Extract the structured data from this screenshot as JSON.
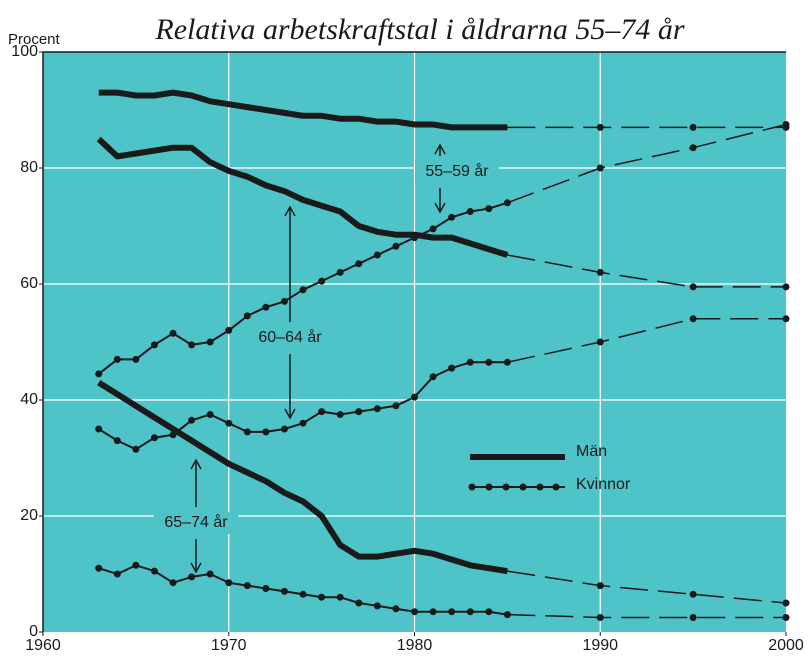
{
  "chart_data": {
    "type": "line",
    "title": "Relativa arbetskraftstal i åldrarna 55–74 år",
    "y_label": "Procent",
    "x": [
      1963,
      1964,
      1965,
      1966,
      1967,
      1968,
      1969,
      1970,
      1971,
      1972,
      1973,
      1974,
      1975,
      1976,
      1977,
      1978,
      1979,
      1980,
      1981,
      1982,
      1983,
      1984,
      1985,
      1990,
      1995,
      2000
    ],
    "dashed_from_x": 1985,
    "series": [
      {
        "name": "Män",
        "color": "#1a1a1a",
        "lines": [
          {
            "values": [
              93,
              93,
              92.5,
              92.5,
              93,
              92.5,
              91.5,
              91,
              90.5,
              90,
              89.5,
              89,
              89,
              88.5,
              88.5,
              88,
              88,
              87.5,
              87.5,
              87,
              87,
              87,
              87,
              87,
              87,
              87
            ]
          },
          {
            "values": [
              85,
              82,
              82.5,
              83,
              83.5,
              83.5,
              81,
              79.5,
              78.5,
              77,
              76,
              74.5,
              73.5,
              72.5,
              70,
              69,
              68.5,
              68.5,
              68,
              68,
              67,
              66,
              65,
              62,
              59.5,
              59.5
            ]
          },
          {
            "values": [
              43,
              41,
              39,
              37,
              35,
              33,
              31,
              29,
              27.5,
              26,
              24,
              22.5,
              20,
              15,
              13,
              13,
              13.5,
              14,
              13.5,
              12.5,
              11.5,
              11,
              10.5,
              8,
              6.5,
              5
            ]
          }
        ]
      },
      {
        "name": "Kvinnor",
        "color": "#1a1a1a",
        "lines": [
          {
            "values": [
              44.5,
              47,
              47,
              49.5,
              51.5,
              49.5,
              50,
              52,
              54.5,
              56,
              57,
              59,
              60.5,
              62,
              63.5,
              65,
              66.5,
              68,
              69.5,
              71.5,
              72.5,
              73,
              74,
              80,
              83.5,
              87.5
            ]
          },
          {
            "values": [
              35,
              33,
              31.5,
              33.5,
              34,
              36.5,
              37.5,
              36,
              34.5,
              34.5,
              35,
              36,
              38,
              37.5,
              38,
              38.5,
              39,
              40.5,
              44,
              45.5,
              46.5,
              46.5,
              46.5,
              50,
              54,
              54
            ]
          },
          {
            "values": [
              11,
              10,
              11.5,
              10.5,
              8.5,
              9.5,
              10,
              8.5,
              8,
              7.5,
              7,
              6.5,
              6,
              6,
              5,
              4.5,
              4,
              3.5,
              3.5,
              3.5,
              3.5,
              3.5,
              3,
              2.5,
              2.5,
              2.5
            ]
          }
        ]
      }
    ],
    "annotations": [
      "55–59 år",
      "60–64 år",
      "65–74 år"
    ],
    "xlim": [
      1960,
      2000
    ],
    "xticks": [
      1960,
      1970,
      1980,
      1990,
      2000
    ],
    "ylim": [
      0,
      100
    ],
    "yticks": [
      0,
      20,
      40,
      60,
      80,
      100
    ],
    "grid": true,
    "background": "#4fc4c8"
  }
}
